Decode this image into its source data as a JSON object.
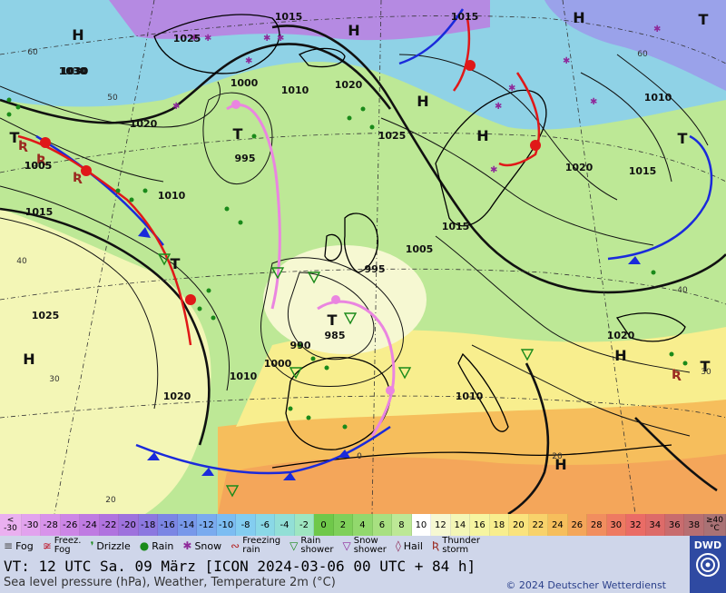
{
  "color_scale": {
    "first_label": [
      "<",
      "-30"
    ],
    "values": [
      "-30",
      "-28",
      "-26",
      "-24",
      "-22",
      "-20",
      "-18",
      "-16",
      "-14",
      "-12",
      "-10",
      "-8",
      "-6",
      "-4",
      "-2",
      "0",
      "2",
      "4",
      "6",
      "8",
      "10",
      "12",
      "14",
      "16",
      "18",
      "20",
      "22",
      "24",
      "26",
      "28",
      "30",
      "32",
      "34",
      "36",
      "38"
    ],
    "colors": [
      "#e2a3ee",
      "#d893ea",
      "#cd86e6",
      "#bf7be2",
      "#b073df",
      "#9e72dd",
      "#8c78e0",
      "#7b86e4",
      "#7898ea",
      "#7aabef",
      "#7cbdf2",
      "#83cdf0",
      "#8ad8e6",
      "#92dfd6",
      "#9ee6c1",
      "#6fc84a",
      "#7fd05a",
      "#92d86d",
      "#a8e081",
      "#bde896",
      "#ffffff",
      "#f6f8d2",
      "#f3f6b6",
      "#f6f5a1",
      "#f8ee8e",
      "#fae37d",
      "#f8d26b",
      "#f6be5c",
      "#f4a65a",
      "#f18e5f",
      "#ee7a62",
      "#ea6c66",
      "#dd6b69",
      "#c86c6e",
      "#b76f72"
    ],
    "last_label": [
      "≥40",
      "°C"
    ]
  },
  "legend": [
    {
      "icon": "fog-icon",
      "sym": "≡",
      "color": "#444",
      "label": "Fog"
    },
    {
      "icon": "freezing-fog-icon",
      "sym": "≆",
      "color": "#c0283c",
      "label": "Freez. Fog"
    },
    {
      "icon": "drizzle-icon",
      "sym": "❜",
      "color": "#1a8a1a",
      "label": "Drizzle"
    },
    {
      "icon": "rain-icon",
      "sym": "●",
      "color": "#1a8a1a",
      "label": "Rain"
    },
    {
      "icon": "snow-icon",
      "sym": "✱",
      "color": "#8e2a9a",
      "label": "Snow"
    },
    {
      "icon": "freezing-rain-icon",
      "sym": "∾",
      "color": "#b32020",
      "label": "Freezing rain"
    },
    {
      "icon": "rain-shower-icon",
      "sym": "▽",
      "color": "#1a8a1a",
      "label": "Rain shower"
    },
    {
      "icon": "snow-shower-icon",
      "sym": "▽",
      "color": "#8e2a9a",
      "label": "Snow shower"
    },
    {
      "icon": "hail-icon",
      "sym": "◊",
      "color": "#8e2a55",
      "label": "Hail"
    },
    {
      "icon": "thunderstorm-icon",
      "sym": "Ʀ",
      "color": "#9a2a20",
      "label": "Thunder storm"
    }
  ],
  "info": {
    "valid_time": "VT: 12 UTC Sa.  09 März [ICON 2024-03-06  00 UTC + 84 h]",
    "description": "Sea level pressure (hPa), Weather, Temperature 2m (°C)",
    "copyright": "© 2024 Deutscher Wetterdienst",
    "logo_text": "DWD"
  },
  "map": {
    "isobar_labels": [
      "1015",
      "1025",
      "1030",
      "1020",
      "1000",
      "995",
      "1010",
      "1015",
      "1005",
      "1025",
      "1020",
      "1015",
      "1010",
      "1005",
      "995",
      "990",
      "985",
      "1000",
      "1010",
      "1020",
      "1025",
      "1030",
      "1015",
      "1005",
      "1010",
      "1020",
      "1015",
      "1020",
      "1010"
    ],
    "pressure_centers": [
      "H",
      "H",
      "H",
      "H",
      "H",
      "H",
      "H",
      "H",
      "T",
      "T",
      "T",
      "T",
      "T",
      "T",
      "T"
    ],
    "temperature_labels": [
      "60",
      "50",
      "40",
      "30",
      "20",
      "0",
      "40",
      "60",
      "30",
      "20"
    ]
  }
}
